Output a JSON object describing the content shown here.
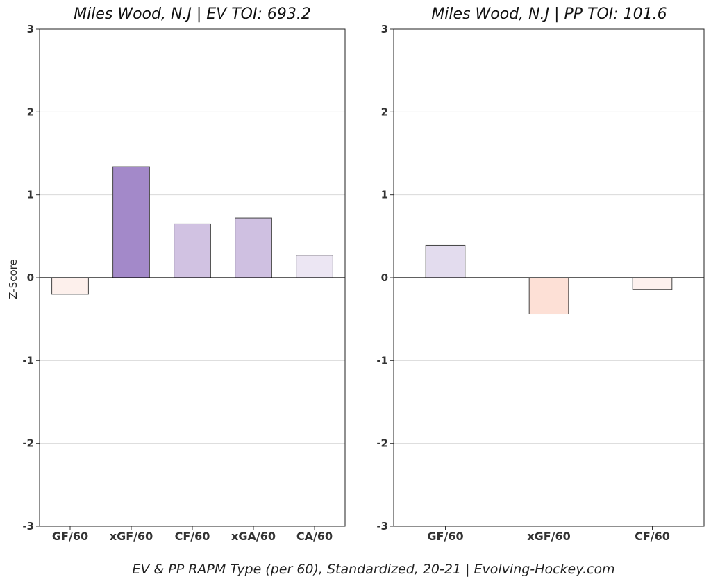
{
  "chart_data": [
    {
      "type": "bar",
      "title": "Miles Wood, N.J  |  EV TOI: 693.2",
      "ylabel": "Z-Score",
      "xlabel": "",
      "categories": [
        "GF/60",
        "xGF/60",
        "CF/60",
        "xGA/60",
        "CA/60"
      ],
      "values": [
        -0.2,
        1.34,
        0.65,
        0.72,
        0.27
      ],
      "bar_colors": [
        "#fdf0ec",
        "#a389c9",
        "#d1c2e2",
        "#cfc0e1",
        "#ece6f3"
      ],
      "ylim": [
        -3,
        3
      ],
      "yticks": [
        "-3",
        "-2",
        "-1",
        "0",
        "1",
        "2",
        "3"
      ],
      "grid": "horizontal"
    },
    {
      "type": "bar",
      "title": "Miles Wood, N.J  |  PP TOI: 101.6",
      "ylabel": "",
      "xlabel": "",
      "categories": [
        "GF/60",
        "xGF/60",
        "CF/60"
      ],
      "values": [
        0.39,
        -0.44,
        -0.14
      ],
      "bar_colors": [
        "#e3dcee",
        "#fde0d6",
        "#fdf1ee"
      ],
      "ylim": [
        -3,
        3
      ],
      "yticks": [
        "-3",
        "-2",
        "-1",
        "0",
        "1",
        "2",
        "3"
      ],
      "grid": "horizontal"
    }
  ],
  "footer": {
    "caption": "EV & PP RAPM Type (per 60), Standardized, 20-21    |    Evolving-Hockey.com"
  }
}
